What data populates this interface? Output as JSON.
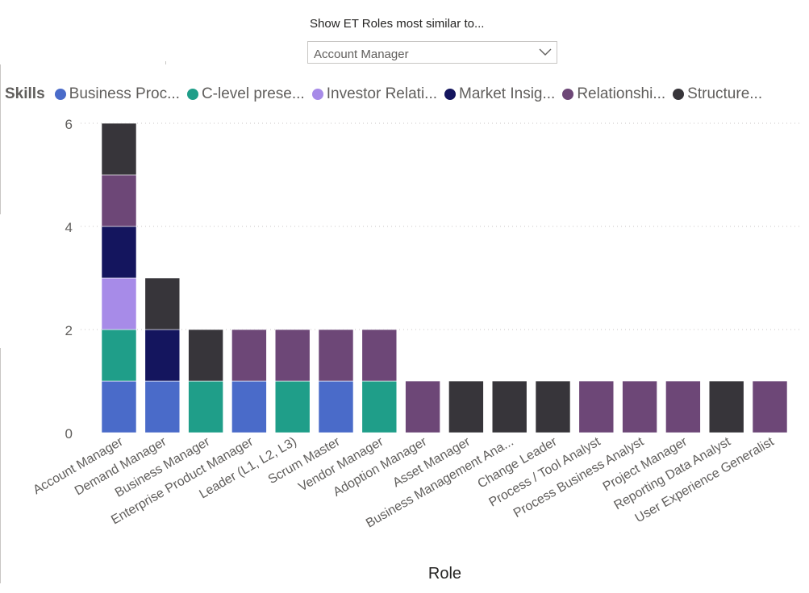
{
  "slicer": {
    "title": "Show ET Roles most similar to...",
    "selected": "Account Manager",
    "chevron_icon": "chevron-down-icon"
  },
  "legend": {
    "title": "Skills",
    "items": [
      {
        "label": "Business Proc...",
        "color": "#4A6BC9"
      },
      {
        "label": "C-level prese...",
        "color": "#1F9E89"
      },
      {
        "label": "Investor Relati...",
        "color": "#A78BE8"
      },
      {
        "label": "Market Insig...",
        "color": "#14155E"
      },
      {
        "label": "Relationshi...",
        "color": "#6D4777"
      },
      {
        "label": "Structure...",
        "color": "#37353A"
      }
    ]
  },
  "chart_data": {
    "type": "bar",
    "stacked": true,
    "xlabel": "Role",
    "ylabel": "",
    "ylim": [
      0,
      6
    ],
    "yticks": [
      0,
      2,
      4,
      6
    ],
    "grid": true,
    "legend_position": "top-left",
    "categories": [
      "Account Manager",
      "Demand Manager",
      "Business Manager",
      "Enterprise Product Manager",
      "Leader (L1, L2, L3)",
      "Scrum Master",
      "Vendor Manager",
      "Adoption Manager",
      "Asset Manager",
      "Business Management Ana...",
      "Change Leader",
      "Process / Tool Analyst",
      "Process Business Analyst",
      "Project Manager",
      "Reporting Data Analyst",
      "User Experience Generalist"
    ],
    "series": [
      {
        "name": "Business Proc...",
        "color": "#4A6BC9",
        "values": [
          1,
          1,
          0,
          1,
          0,
          1,
          0,
          0,
          0,
          0,
          0,
          0,
          0,
          0,
          0,
          0
        ]
      },
      {
        "name": "C-level prese...",
        "color": "#1F9E89",
        "values": [
          1,
          0,
          1,
          0,
          1,
          0,
          1,
          0,
          0,
          0,
          0,
          0,
          0,
          0,
          0,
          0
        ]
      },
      {
        "name": "Investor Relati...",
        "color": "#A78BE8",
        "values": [
          1,
          0,
          0,
          0,
          0,
          0,
          0,
          0,
          0,
          0,
          0,
          0,
          0,
          0,
          0,
          0
        ]
      },
      {
        "name": "Market Insig...",
        "color": "#14155E",
        "values": [
          1,
          1,
          0,
          0,
          0,
          0,
          0,
          0,
          0,
          0,
          0,
          0,
          0,
          0,
          0,
          0
        ]
      },
      {
        "name": "Relationshi...",
        "color": "#6D4777",
        "values": [
          1,
          0,
          0,
          1,
          1,
          1,
          1,
          1,
          0,
          0,
          0,
          1,
          1,
          1,
          0,
          1
        ]
      },
      {
        "name": "Structure...",
        "color": "#37353A",
        "values": [
          1,
          1,
          1,
          0,
          0,
          0,
          0,
          0,
          1,
          1,
          1,
          0,
          0,
          0,
          1,
          0
        ]
      }
    ]
  }
}
